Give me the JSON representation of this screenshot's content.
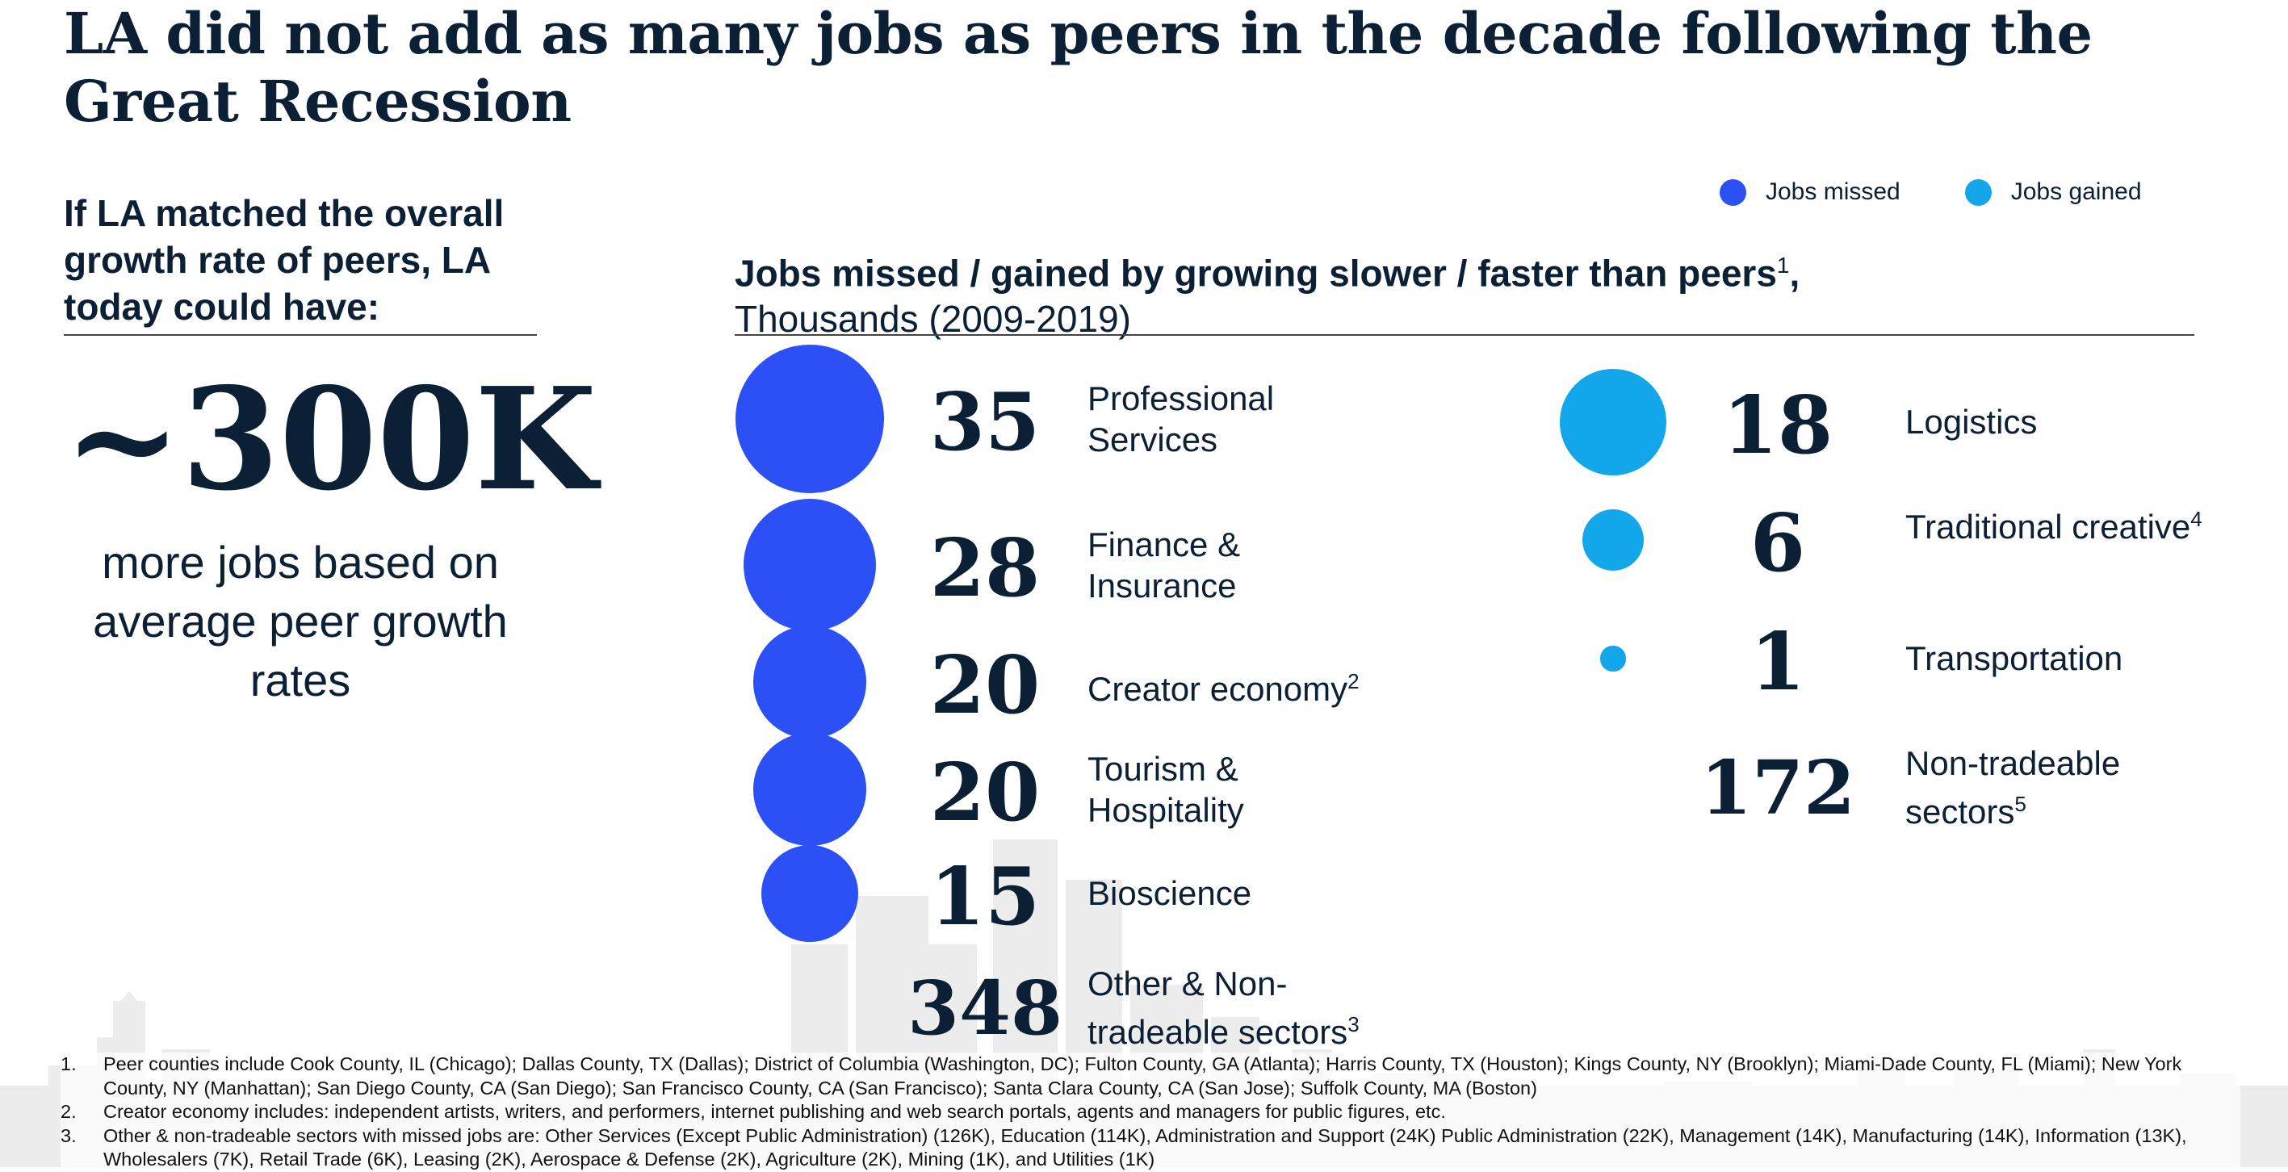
{
  "title": "LA did not add as many jobs as peers in the decade following the Great Recession",
  "lead": {
    "question": "If LA matched the overall growth rate of peers, LA today could have:",
    "big_number": "~300K",
    "caption": "more jobs based on average peer growth rates"
  },
  "colors": {
    "missed": "#2b50f5",
    "gained": "#13a6ea",
    "text": "#0b1f35"
  },
  "legend": {
    "missed": "Jobs missed",
    "gained": "Jobs gained"
  },
  "chart_data": {
    "type": "bubble",
    "title": "Jobs missed / gained by growing slower / faster than peers",
    "title_superscript": "1",
    "title_suffix": ",",
    "subtitle": "Thousands (2009-2019)",
    "series": [
      {
        "name": "Jobs missed",
        "points": [
          {
            "value": 35,
            "label": "Professional Services",
            "note": "",
            "bubble": true
          },
          {
            "value": 28,
            "label": "Finance & Insurance",
            "note": "",
            "bubble": true
          },
          {
            "value": 20,
            "label": "Creator economy",
            "note": "2",
            "bubble": true
          },
          {
            "value": 20,
            "label": "Tourism & Hospitality",
            "note": "",
            "bubble": true
          },
          {
            "value": 15,
            "label": "Bioscience",
            "note": "",
            "bubble": true
          },
          {
            "value": 348,
            "label": "Other & Non-tradeable sectors",
            "note": "3",
            "bubble": false
          }
        ]
      },
      {
        "name": "Jobs gained",
        "points": [
          {
            "value": 18,
            "label": "Logistics",
            "note": "",
            "bubble": true
          },
          {
            "value": 6,
            "label": "Traditional creative",
            "note": "4",
            "bubble": true
          },
          {
            "value": 1,
            "label": "Transportation",
            "note": "",
            "bubble": true
          },
          {
            "value": 172,
            "label": "Non-tradeable sectors",
            "note": "5",
            "bubble": false
          }
        ]
      }
    ]
  },
  "footnotes": [
    {
      "num": "1.",
      "text": "Peer counties include Cook County, IL (Chicago); Dallas County, TX (Dallas); District of Columbia (Washington, DC); Fulton County, GA (Atlanta); Harris County, TX (Houston); Kings County, NY (Brooklyn); Miami-Dade County, FL (Miami); New York County, NY (Manhattan); San Diego County, CA (San Diego);  San Francisco County, CA (San Francisco); Santa Clara County, CA (San Jose); Suffolk County, MA (Boston)"
    },
    {
      "num": "2.",
      "text": "Creator economy includes: independent artists, writers, and performers, internet publishing and web search portals, agents and managers for public figures, etc."
    },
    {
      "num": "3.",
      "text": "Other & non-tradeable sectors with missed jobs are: Other Services (Except Public Administration) (126K), Education (114K), Administration and Support (24K) Public Administration (22K), Management (14K), Manufacturing (14K), Information (13K), Wholesalers (7K), Retail Trade (6K), Leasing (2K), Aerospace & Defense (2K), Agriculture (2K), Mining (1K), and Utilities (1K)"
    }
  ]
}
